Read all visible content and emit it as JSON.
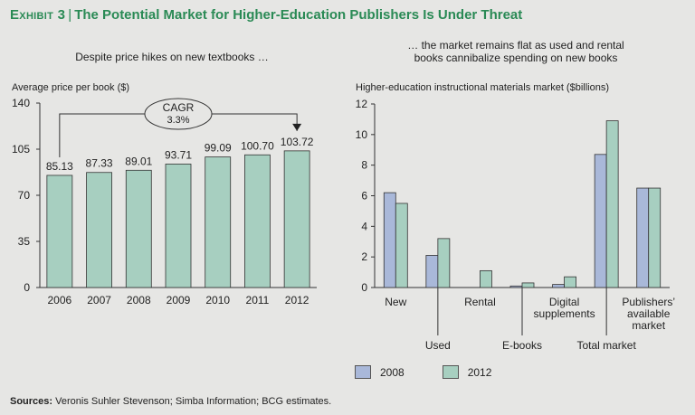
{
  "header": {
    "exhibit_label": "Exhibit 3",
    "title": "The Potential Market for Higher-Education Publishers Is Under Threat"
  },
  "colors": {
    "accent": "#2a8a55",
    "series_2008": "#a9b8d9",
    "series_2012": "#a7cfc0",
    "bar_fill": "#a7cfc0",
    "stroke": "#333333"
  },
  "left": {
    "subtitle": "Despite price hikes on new textbooks …",
    "cagr_label": "CAGR",
    "cagr_value": "3.3%"
  },
  "right": {
    "subtitle_line1": "… the market remains flat as used and rental",
    "subtitle_line2": "books cannibalize spending on new books"
  },
  "chart_data": [
    {
      "type": "bar",
      "ylabel": "Average price per book ($)",
      "ylim": [
        0,
        140
      ],
      "yticks": [
        0,
        35,
        70,
        105,
        140
      ],
      "categories": [
        "2006",
        "2007",
        "2008",
        "2009",
        "2010",
        "2011",
        "2012"
      ],
      "values": [
        85.13,
        87.33,
        89.01,
        93.71,
        99.09,
        100.7,
        103.72
      ],
      "value_labels": [
        "85.13",
        "87.33",
        "89.01",
        "93.71",
        "99.09",
        "100.70",
        "103.72"
      ],
      "annotation": "CAGR 3.3%",
      "grid": false
    },
    {
      "type": "bar",
      "ylabel": "Higher-education instructional materials market ($billions)",
      "ylim": [
        0,
        12
      ],
      "yticks": [
        0,
        2,
        4,
        6,
        8,
        10,
        12
      ],
      "categories": [
        "New",
        "Used",
        "Rental",
        "E-books",
        "Digital supplements",
        "Total market",
        "Publishers’ available market"
      ],
      "category_label_lines": [
        [
          "New"
        ],
        [
          "Used"
        ],
        [
          "Rental"
        ],
        [
          "E-books"
        ],
        [
          "Digital",
          "supplements"
        ],
        [
          "Total market"
        ],
        [
          "Publishers’",
          "available",
          "market"
        ]
      ],
      "series": [
        {
          "name": "2008",
          "values": [
            6.2,
            2.1,
            0.0,
            0.1,
            0.2,
            8.7,
            6.5
          ]
        },
        {
          "name": "2012",
          "values": [
            5.5,
            3.2,
            1.1,
            0.3,
            0.7,
            10.9,
            6.5
          ]
        }
      ],
      "legend": "bottom",
      "grid": false
    }
  ],
  "sources": {
    "label": "Sources:",
    "text": " Veronis Suhler Stevenson; Simba Information; BCG estimates."
  }
}
